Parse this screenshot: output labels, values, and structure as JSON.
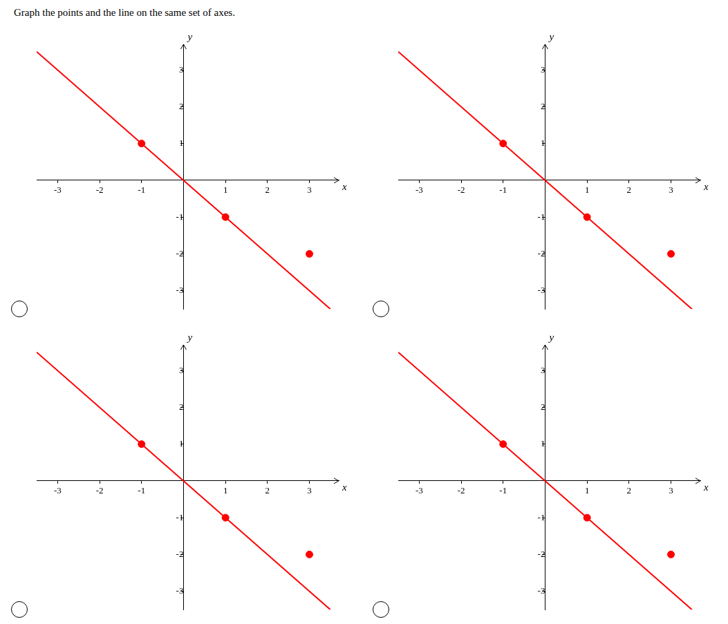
{
  "title": "Graph the points and the line on the same set of axes.",
  "chart_data": [
    {
      "type": "scatter",
      "xlabel": "x",
      "ylabel": "y",
      "series": [
        {
          "type": "scatter",
          "marker": "circle",
          "color": "#FF0000",
          "x": [
            -1,
            1,
            3
          ],
          "values": [
            1,
            -1,
            -2
          ]
        },
        {
          "type": "line",
          "line_style": "solid",
          "color": "#FF0000",
          "x": [
            -3.5,
            3.5
          ],
          "values": [
            3.5,
            -3.5
          ]
        }
      ],
      "xlim": [
        -3.5,
        3.7
      ],
      "ylim": [
        -3.5,
        3.7
      ],
      "xticks": [
        -3,
        -2,
        -1,
        1,
        2,
        3
      ],
      "yticks": [
        -3,
        -2,
        -1,
        1,
        2,
        3
      ],
      "grid": false
    },
    {
      "type": "scatter",
      "xlabel": "x",
      "ylabel": "y",
      "series": [
        {
          "type": "scatter",
          "marker": "circle",
          "color": "#FF0000",
          "x": [
            -1,
            1,
            3
          ],
          "values": [
            1,
            -1,
            -2
          ]
        },
        {
          "type": "line",
          "line_style": "solid",
          "color": "#FF0000",
          "x": [
            -3.5,
            3.5
          ],
          "values": [
            3.5,
            -3.5
          ]
        }
      ],
      "xlim": [
        -3.5,
        3.7
      ],
      "ylim": [
        -3.5,
        3.7
      ],
      "xticks": [
        -3,
        -2,
        -1,
        1,
        2,
        3
      ],
      "yticks": [
        -3,
        -2,
        -1,
        1,
        2,
        3
      ],
      "grid": false
    },
    {
      "type": "scatter",
      "xlabel": "x",
      "ylabel": "y",
      "series": [
        {
          "type": "scatter",
          "marker": "circle",
          "color": "#FF0000",
          "x": [
            -1,
            1,
            3
          ],
          "values": [
            1,
            -1,
            -2
          ]
        },
        {
          "type": "line",
          "line_style": "solid",
          "color": "#FF0000",
          "x": [
            -3.5,
            3.5
          ],
          "values": [
            3.5,
            -3.5
          ]
        }
      ],
      "xlim": [
        -3.5,
        3.7
      ],
      "ylim": [
        -3.5,
        3.7
      ],
      "xticks": [
        -3,
        -2,
        -1,
        1,
        2,
        3
      ],
      "yticks": [
        -3,
        -2,
        -1,
        1,
        2,
        3
      ],
      "grid": false
    },
    {
      "type": "scatter",
      "xlabel": "x",
      "ylabel": "y",
      "series": [
        {
          "type": "scatter",
          "marker": "circle",
          "color": "#FF0000",
          "x": [
            -1,
            1,
            3
          ],
          "values": [
            1,
            -1,
            -2
          ]
        },
        {
          "type": "line",
          "line_style": "solid",
          "color": "#FF0000",
          "x": [
            -3.5,
            3.5
          ],
          "values": [
            3.5,
            -3.5
          ]
        }
      ],
      "xlim": [
        -3.5,
        3.7
      ],
      "ylim": [
        -3.5,
        3.7
      ],
      "xticks": [
        -3,
        -2,
        -1,
        1,
        2,
        3
      ],
      "yticks": [
        -3,
        -2,
        -1,
        1,
        2,
        3
      ],
      "grid": false
    }
  ]
}
